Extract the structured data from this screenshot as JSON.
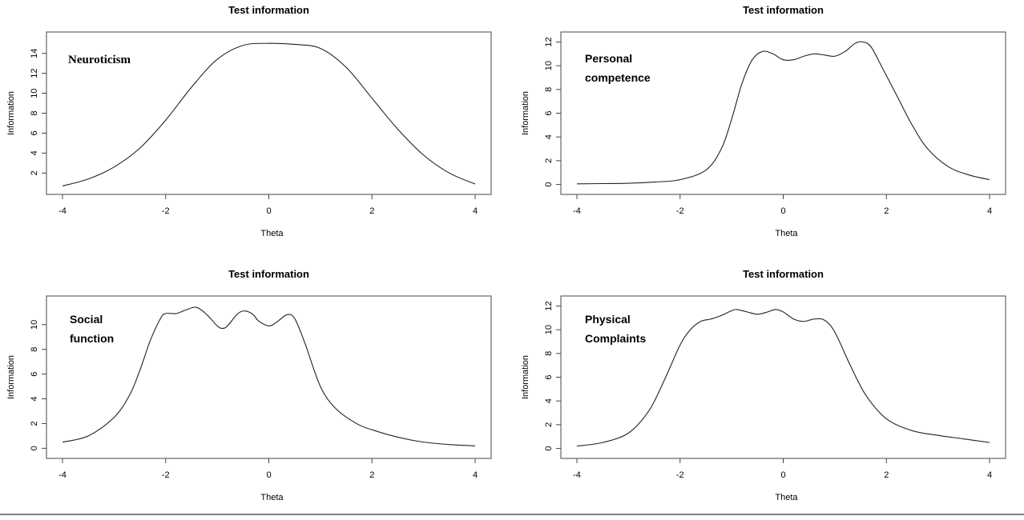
{
  "chart_data": [
    {
      "type": "line",
      "title": "Test information",
      "xlabel": "Theta",
      "ylabel": "Information",
      "annotation": [
        "Neuroticism"
      ],
      "xlim": [
        -4,
        4
      ],
      "ylim": [
        0.5,
        15.5
      ],
      "xticks": [
        -4,
        -2,
        0,
        2,
        4
      ],
      "yticks": [
        2,
        4,
        6,
        8,
        10,
        12,
        14
      ],
      "x": [
        -4,
        -3.5,
        -3,
        -2.5,
        -2,
        -1.5,
        -1,
        -0.5,
        0,
        0.5,
        1,
        1.5,
        2,
        2.5,
        3,
        3.5,
        4
      ],
      "y": [
        0.7,
        1.4,
        2.6,
        4.5,
        7.3,
        10.6,
        13.4,
        14.8,
        15.0,
        14.9,
        14.5,
        12.6,
        9.5,
        6.4,
        3.8,
        2.0,
        0.9
      ]
    },
    {
      "type": "line",
      "title": "Test information",
      "xlabel": "Theta",
      "ylabel": "Information",
      "annotation": [
        "Personal",
        "competence"
      ],
      "xlim": [
        -4,
        4
      ],
      "ylim": [
        -0.3,
        12.3
      ],
      "xticks": [
        -4,
        -2,
        0,
        2,
        4
      ],
      "yticks": [
        0,
        2,
        4,
        6,
        8,
        10,
        12
      ],
      "x": [
        -4,
        -3.5,
        -3,
        -2.5,
        -2,
        -1.5,
        -1.2,
        -1,
        -0.8,
        -0.6,
        -0.4,
        -0.2,
        0,
        0.2,
        0.4,
        0.6,
        0.8,
        1,
        1.2,
        1.4,
        1.55,
        1.7,
        1.9,
        2.2,
        2.5,
        2.8,
        3.2,
        3.6,
        4
      ],
      "y": [
        0.05,
        0.07,
        0.1,
        0.2,
        0.4,
        1.2,
        3.0,
        5.5,
        8.5,
        10.5,
        11.2,
        11.0,
        10.5,
        10.5,
        10.8,
        11.0,
        10.9,
        10.8,
        11.2,
        11.9,
        12.0,
        11.6,
        10.0,
        7.5,
        5.0,
        3.0,
        1.5,
        0.8,
        0.4
      ]
    },
    {
      "type": "line",
      "title": "Test information",
      "xlabel": "Theta",
      "ylabel": "Information",
      "annotation": [
        "Social",
        "function"
      ],
      "xlim": [
        -4,
        4
      ],
      "ylim": [
        -0.3,
        11.8
      ],
      "xticks": [
        -4,
        -2,
        0,
        2,
        4
      ],
      "yticks": [
        0,
        2,
        4,
        6,
        8,
        10
      ],
      "x": [
        -4,
        -3.5,
        -3,
        -2.7,
        -2.5,
        -2.3,
        -2.1,
        -2.0,
        -1.8,
        -1.6,
        -1.4,
        -1.2,
        -1.0,
        -0.9,
        -0.8,
        -0.6,
        -0.45,
        -0.3,
        -0.2,
        0,
        0.15,
        0.35,
        0.5,
        0.7,
        1.0,
        1.3,
        1.7,
        2.0,
        2.5,
        3,
        3.5,
        4
      ],
      "y": [
        0.5,
        1.0,
        2.5,
        4.3,
        6.3,
        8.7,
        10.5,
        10.9,
        10.9,
        11.2,
        11.4,
        10.8,
        9.9,
        9.7,
        9.9,
        10.9,
        11.1,
        10.8,
        10.3,
        9.9,
        10.2,
        10.8,
        10.5,
        8.5,
        5.0,
        3.2,
        2.0,
        1.5,
        0.9,
        0.5,
        0.3,
        0.2
      ]
    },
    {
      "type": "line",
      "title": "Test information",
      "xlabel": "Theta",
      "ylabel": "Information",
      "annotation": [
        "Physical",
        "Complaints"
      ],
      "xlim": [
        -4,
        4
      ],
      "ylim": [
        -0.3,
        12.3
      ],
      "xticks": [
        -4,
        -2,
        0,
        2,
        4
      ],
      "yticks": [
        0,
        2,
        4,
        6,
        8,
        10,
        12
      ],
      "x": [
        -4,
        -3.5,
        -3,
        -2.6,
        -2.3,
        -2.0,
        -1.8,
        -1.6,
        -1.4,
        -1.2,
        -1.0,
        -0.9,
        -0.7,
        -0.5,
        -0.3,
        -0.15,
        0,
        0.2,
        0.4,
        0.6,
        0.8,
        1.0,
        1.3,
        1.6,
        2.0,
        2.5,
        3,
        3.5,
        4
      ],
      "y": [
        0.2,
        0.5,
        1.3,
        3.2,
        5.8,
        8.7,
        10.0,
        10.7,
        10.9,
        11.2,
        11.6,
        11.7,
        11.5,
        11.3,
        11.5,
        11.7,
        11.5,
        10.9,
        10.7,
        10.9,
        10.8,
        9.8,
        7.0,
        4.5,
        2.5,
        1.5,
        1.1,
        0.8,
        0.5
      ]
    }
  ]
}
